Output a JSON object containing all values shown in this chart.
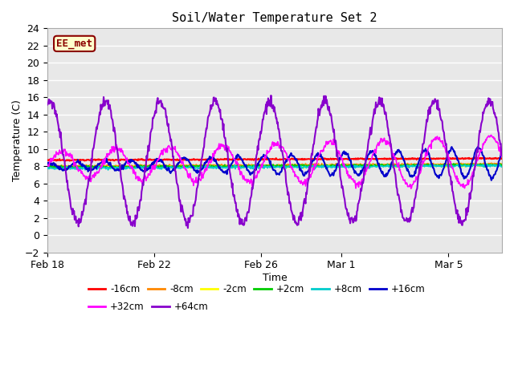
{
  "title": "Soil/Water Temperature Set 2",
  "xlabel": "Time",
  "ylabel": "Temperature (C)",
  "ylim": [
    -2,
    24
  ],
  "yticks": [
    -2,
    0,
    2,
    4,
    6,
    8,
    10,
    12,
    14,
    16,
    18,
    20,
    22,
    24
  ],
  "xtick_labels": [
    "Feb 18",
    "Feb 22",
    "Feb 26",
    "Mar 1",
    "Mar 5"
  ],
  "plot_bg_color": "#e8e8e8",
  "grid_color": "#ffffff",
  "label_box_text": "EE_met",
  "label_box_facecolor": "#ffffcc",
  "label_box_edgecolor": "#8b0000",
  "label_box_textcolor": "#8b0000",
  "series_order": [
    "-16cm",
    "-8cm",
    "-2cm",
    "+2cm",
    "+8cm",
    "+16cm",
    "+32cm",
    "+64cm"
  ],
  "series": {
    "-16cm": {
      "color": "#ff0000",
      "lw": 1.5
    },
    "-8cm": {
      "color": "#ff8800",
      "lw": 1.2
    },
    "-2cm": {
      "color": "#ffff00",
      "lw": 1.2
    },
    "+2cm": {
      "color": "#00cc00",
      "lw": 1.2
    },
    "+8cm": {
      "color": "#00cccc",
      "lw": 1.2
    },
    "+16cm": {
      "color": "#0000cc",
      "lw": 1.5
    },
    "+32cm": {
      "color": "#ff00ff",
      "lw": 1.2
    },
    "+64cm": {
      "color": "#8800cc",
      "lw": 1.5
    }
  },
  "legend_row1": [
    "-16cm",
    "-8cm",
    "-2cm",
    "+2cm",
    "+8cm",
    "+16cm"
  ],
  "legend_row2": [
    "+32cm",
    "+64cm"
  ],
  "figsize": [
    6.4,
    4.8
  ],
  "dpi": 100
}
